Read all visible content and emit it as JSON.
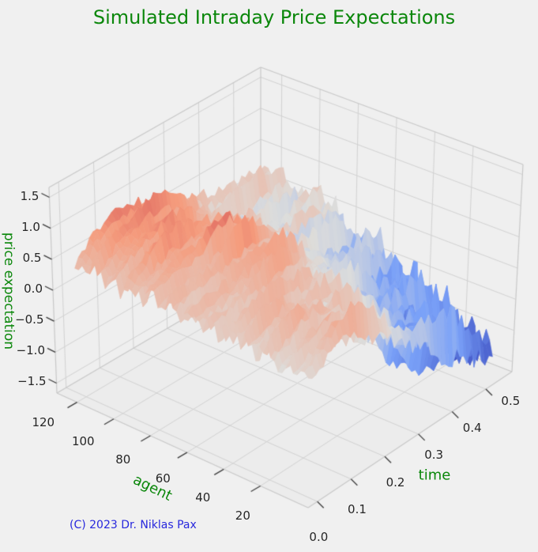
{
  "figure": {
    "background": "#f0f0f0",
    "watermark": "(C) 2023 Dr. Niklas Pax",
    "watermark_color": "#2828dd",
    "label_color": "#0b870b",
    "tick_color": "#262626"
  },
  "chart_data": {
    "type": "surface",
    "title": "Simulated Intraday Price Expectations",
    "xlabel": "agent",
    "ylabel": "time",
    "zlabel": "price expectation",
    "xlim": [
      0,
      125
    ],
    "ylim": [
      0,
      0.55
    ],
    "zlim": [
      -1.5,
      1.5
    ],
    "grid": true,
    "colormap": "coolwarm",
    "xticks": [
      {
        "value": 20,
        "label": "20"
      },
      {
        "value": 40,
        "label": "40"
      },
      {
        "value": 60,
        "label": "60"
      },
      {
        "value": 80,
        "label": "80"
      },
      {
        "value": 100,
        "label": "100"
      },
      {
        "value": 120,
        "label": "120"
      }
    ],
    "yticks": [
      {
        "value": 0.0,
        "label": "0.0"
      },
      {
        "value": 0.1,
        "label": "0.1"
      },
      {
        "value": 0.2,
        "label": "0.2"
      },
      {
        "value": 0.3,
        "label": "0.3"
      },
      {
        "value": 0.4,
        "label": "0.4"
      },
      {
        "value": 0.5,
        "label": "0.5"
      }
    ],
    "zticks": [
      {
        "value": -1.5,
        "label": "−1.5"
      },
      {
        "value": -1.0,
        "label": "−1.0"
      },
      {
        "value": -0.5,
        "label": "−0.5"
      },
      {
        "value": 0.0,
        "label": "0.0"
      },
      {
        "value": 0.5,
        "label": "0.5"
      },
      {
        "value": 1.0,
        "label": "1.0"
      },
      {
        "value": 1.5,
        "label": "1.5"
      }
    ],
    "surface": {
      "agent_levels": [
        0,
        16,
        32,
        48,
        64,
        80,
        96,
        112,
        128
      ],
      "time_levels": [
        0,
        0.05,
        0.1,
        0.15,
        0.2,
        0.25,
        0.3,
        0.35,
        0.4,
        0.45,
        0.5,
        0.55
      ],
      "base": [
        [
          0.05,
          0.2,
          0.4,
          0.35,
          0.1,
          -0.1,
          -0.35,
          -0.55,
          -0.8,
          -1.0,
          -1.2,
          -1.3
        ],
        [
          0.1,
          0.3,
          0.5,
          0.4,
          0.2,
          0.0,
          -0.25,
          -0.45,
          -0.65,
          -0.9,
          -1.1,
          -1.2
        ],
        [
          0.2,
          0.35,
          0.45,
          0.3,
          0.3,
          0.15,
          -0.15,
          -0.35,
          -0.55,
          -0.7,
          -0.9,
          -1.0
        ],
        [
          0.25,
          0.3,
          0.3,
          0.35,
          0.45,
          0.4,
          0.1,
          -0.15,
          -0.35,
          -0.5,
          -0.6,
          -0.65
        ],
        [
          0.3,
          0.3,
          0.35,
          0.45,
          0.55,
          0.5,
          0.25,
          0.0,
          -0.2,
          -0.35,
          -0.4,
          -0.45
        ],
        [
          0.3,
          0.4,
          0.5,
          0.55,
          0.6,
          0.55,
          0.35,
          0.1,
          -0.1,
          -0.2,
          -0.25,
          -0.3
        ],
        [
          0.35,
          0.55,
          0.7,
          0.75,
          0.7,
          0.55,
          0.35,
          0.1,
          -0.1,
          -0.1,
          0.0,
          0.0
        ],
        [
          0.4,
          0.65,
          0.85,
          0.9,
          0.8,
          0.6,
          0.4,
          0.2,
          0.05,
          0.1,
          0.15,
          0.1
        ],
        [
          0.35,
          0.7,
          0.8,
          0.75,
          0.7,
          0.6,
          0.45,
          0.3,
          0.2,
          0.2,
          0.2,
          0.15
        ]
      ],
      "amplitude": [
        [
          0.22,
          0.28,
          0.32,
          0.36,
          0.38,
          0.42,
          0.45,
          0.48,
          0.52,
          0.58,
          0.62,
          0.62
        ],
        [
          0.22,
          0.28,
          0.32,
          0.36,
          0.4,
          0.42,
          0.45,
          0.48,
          0.52,
          0.56,
          0.6,
          0.6
        ],
        [
          0.22,
          0.26,
          0.3,
          0.34,
          0.38,
          0.4,
          0.42,
          0.45,
          0.48,
          0.52,
          0.55,
          0.55
        ],
        [
          0.2,
          0.26,
          0.3,
          0.32,
          0.36,
          0.4,
          0.4,
          0.42,
          0.45,
          0.48,
          0.5,
          0.5
        ],
        [
          0.2,
          0.25,
          0.28,
          0.32,
          0.35,
          0.36,
          0.4,
          0.4,
          0.42,
          0.45,
          0.45,
          0.45
        ],
        [
          0.2,
          0.24,
          0.26,
          0.3,
          0.34,
          0.35,
          0.36,
          0.4,
          0.4,
          0.4,
          0.42,
          0.42
        ],
        [
          0.2,
          0.24,
          0.26,
          0.3,
          0.3,
          0.34,
          0.35,
          0.36,
          0.36,
          0.36,
          0.4,
          0.4
        ],
        [
          0.18,
          0.22,
          0.25,
          0.26,
          0.3,
          0.3,
          0.34,
          0.35,
          0.35,
          0.35,
          0.36,
          0.36
        ],
        [
          0.16,
          0.2,
          0.24,
          0.26,
          0.3,
          0.3,
          0.3,
          0.34,
          0.35,
          0.35,
          0.35,
          0.35
        ]
      ],
      "resolution": {
        "agent_step": 2,
        "agent_max": 124,
        "time_step": 0.011,
        "time_max": 0.55
      },
      "corrugation": {
        "seed": 11,
        "wave_amp": 0.5,
        "wave_freq": 1.22,
        "alt_min": 0.35,
        "alt_rand": 0.35,
        "flip_prob": 0.15,
        "time_freq": 0.29,
        "time_mod_base": 0.62,
        "time_mod_amp": 0.38,
        "white_frac": 0.3,
        "clamp": 1.55
      }
    }
  }
}
